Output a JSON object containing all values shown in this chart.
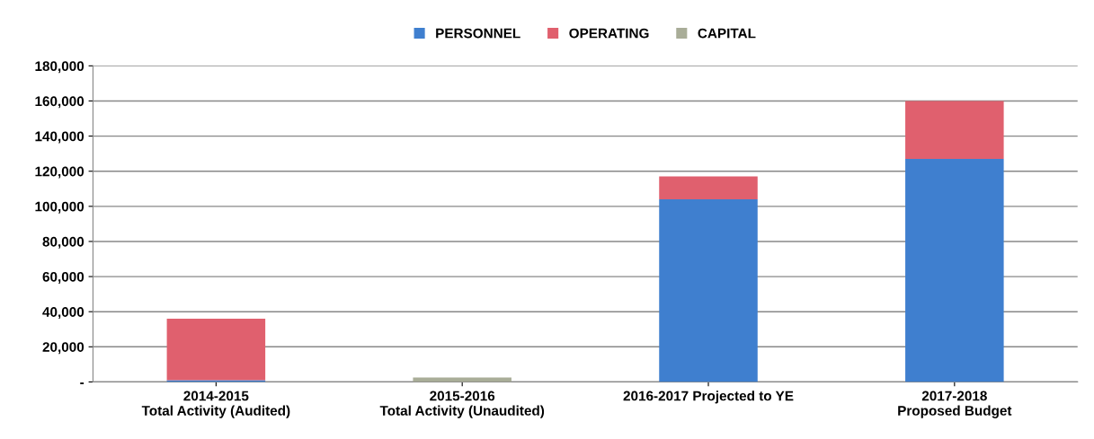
{
  "chart_data": {
    "type": "bar",
    "stacked": true,
    "categories": [
      "2014-2015\nTotal Activity (Audited)",
      "2015-2016\nTotal Activity (Unaudited)",
      "2016-2017 Projected to YE",
      "2017-2018\nProposed Budget"
    ],
    "series": [
      {
        "name": "PERSONNEL",
        "color": "#3f7fcf",
        "values": [
          1000,
          0,
          104000,
          127000
        ]
      },
      {
        "name": "OPERATING",
        "color": "#e0606e",
        "values": [
          35000,
          0,
          13000,
          33000
        ]
      },
      {
        "name": "CAPITAL",
        "color": "#a9ad98",
        "values": [
          0,
          2500,
          0,
          0
        ]
      }
    ],
    "ylim": [
      0,
      180000
    ],
    "yticks": [
      {
        "value": 0,
        "label": "-"
      },
      {
        "value": 20000,
        "label": "20,000"
      },
      {
        "value": 40000,
        "label": "40,000"
      },
      {
        "value": 60000,
        "label": "60,000"
      },
      {
        "value": 80000,
        "label": "80,000"
      },
      {
        "value": 100000,
        "label": "100,000"
      },
      {
        "value": 120000,
        "label": "120,000"
      },
      {
        "value": 140000,
        "label": "140,000"
      },
      {
        "value": 160000,
        "label": "160,000"
      },
      {
        "value": 180000,
        "label": "180,000"
      }
    ],
    "grid": "y",
    "legend": "top"
  }
}
